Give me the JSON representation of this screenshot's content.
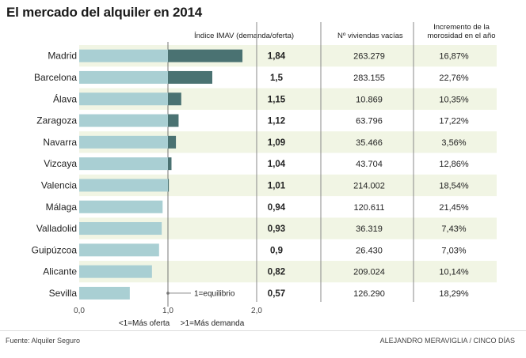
{
  "title": "El mercado del alquiler en 2014",
  "headers": {
    "imav": "Índice IMAV (demanda/oferta)",
    "viviendas": "Nº viviendas vacías",
    "morosidad_line1": "Incremento de la",
    "morosidad_line2": "morosidad en el año"
  },
  "chart_data": {
    "type": "bar",
    "orientation": "horizontal",
    "title": "El mercado del alquiler en 2014",
    "xlabel": "Índice IMAV (demanda/oferta)",
    "xlim": [
      0,
      2
    ],
    "x_ticks": [
      "0,0",
      "1,0",
      "2,0"
    ],
    "categories": [
      "Madrid",
      "Barcelona",
      "Álava",
      "Zaragoza",
      "Navarra",
      "Vizcaya",
      "Valencia",
      "Málaga",
      "Valladolid",
      "Guipúzcoa",
      "Alicante",
      "Sevilla"
    ],
    "values": [
      1.84,
      1.5,
      1.15,
      1.12,
      1.09,
      1.04,
      1.01,
      0.94,
      0.93,
      0.9,
      0.82,
      0.57
    ],
    "value_labels": [
      "1,84",
      "1,5",
      "1,15",
      "1,12",
      "1,09",
      "1,04",
      "1,01",
      "0,94",
      "0,93",
      "0,9",
      "0,82",
      "0,57"
    ],
    "viviendas_vacias": [
      "263.279",
      "283.155",
      "10.869",
      "63.796",
      "35.466",
      "43.704",
      "214.002",
      "120.611",
      "36.319",
      "26.430",
      "209.024",
      "126.290"
    ],
    "morosidad": [
      "16,87%",
      "22,76%",
      "10,35%",
      "17,22%",
      "3,56%",
      "12,86%",
      "18,54%",
      "21,45%",
      "7,43%",
      "7,03%",
      "10,14%",
      "18,29%"
    ],
    "reference": {
      "value": 1.0,
      "label": "1=equilibrio"
    },
    "axis_notes": {
      "left": "<1=Más oferta",
      "right": ">1=Más demanda"
    }
  },
  "colors": {
    "bar_left": "#a9cfd3",
    "bar_right": "#4a7272",
    "stripe": "#f1f5e4",
    "divider": "#888888"
  },
  "footer": {
    "source": "Fuente: Alquiler Seguro",
    "credit": "ALEJANDRO MERAVIGLIA / CINCO DÍAS"
  }
}
